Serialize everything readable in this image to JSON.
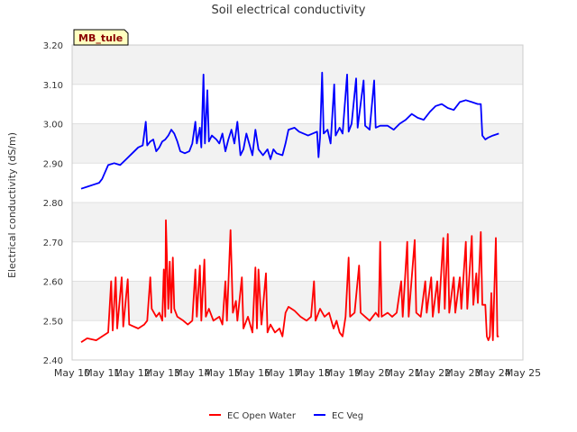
{
  "chart_data": {
    "type": "line",
    "title": "Soil electrical conductivity",
    "xlabel": "",
    "ylabel": "Electrical conductivity (dS/m)",
    "site_label": "MB_tule",
    "ylim": [
      2.4,
      3.2
    ],
    "xlim": [
      0,
      15
    ],
    "yticks": [
      2.4,
      2.5,
      2.6,
      2.7,
      2.8,
      2.9,
      3.0,
      3.1,
      3.2
    ],
    "ytick_labels": [
      "2.40",
      "2.50",
      "2.60",
      "2.70",
      "2.80",
      "2.90",
      "3.00",
      "3.10",
      "3.20"
    ],
    "xticks": [
      0,
      1,
      2,
      3,
      4,
      5,
      6,
      7,
      8,
      9,
      10,
      11,
      12,
      13,
      14,
      15
    ],
    "xtick_labels": [
      "May 10",
      "May 11",
      "May 12",
      "May 13",
      "May 14",
      "May 15",
      "May 16",
      "May 17",
      "May 18",
      "May 19",
      "May 20",
      "May 21",
      "May 22",
      "May 23",
      "May 24",
      "May 25"
    ],
    "x_units": "days since May 10",
    "grid": "horizontal",
    "legend_position": "bottom-center",
    "series": [
      {
        "name": "EC Open Water",
        "color": "#ff0000",
        "points": [
          [
            0.3,
            2.445
          ],
          [
            0.5,
            2.455
          ],
          [
            0.8,
            2.45
          ],
          [
            1.0,
            2.46
          ],
          [
            1.2,
            2.47
          ],
          [
            1.3,
            2.6
          ],
          [
            1.35,
            2.475
          ],
          [
            1.45,
            2.61
          ],
          [
            1.5,
            2.48
          ],
          [
            1.65,
            2.61
          ],
          [
            1.7,
            2.485
          ],
          [
            1.85,
            2.605
          ],
          [
            1.9,
            2.49
          ],
          [
            2.2,
            2.48
          ],
          [
            2.4,
            2.49
          ],
          [
            2.5,
            2.5
          ],
          [
            2.6,
            2.61
          ],
          [
            2.65,
            2.53
          ],
          [
            2.8,
            2.51
          ],
          [
            2.9,
            2.52
          ],
          [
            3.0,
            2.5
          ],
          [
            3.05,
            2.63
          ],
          [
            3.1,
            2.51
          ],
          [
            3.12,
            2.755
          ],
          [
            3.2,
            2.53
          ],
          [
            3.25,
            2.65
          ],
          [
            3.3,
            2.52
          ],
          [
            3.35,
            2.66
          ],
          [
            3.4,
            2.53
          ],
          [
            3.5,
            2.51
          ],
          [
            3.7,
            2.5
          ],
          [
            3.85,
            2.49
          ],
          [
            4.0,
            2.5
          ],
          [
            4.1,
            2.63
          ],
          [
            4.15,
            2.51
          ],
          [
            4.25,
            2.64
          ],
          [
            4.3,
            2.5
          ],
          [
            4.4,
            2.655
          ],
          [
            4.45,
            2.51
          ],
          [
            4.55,
            2.53
          ],
          [
            4.7,
            2.5
          ],
          [
            4.9,
            2.51
          ],
          [
            5.0,
            2.49
          ],
          [
            5.1,
            2.6
          ],
          [
            5.15,
            2.5
          ],
          [
            5.27,
            2.73
          ],
          [
            5.35,
            2.52
          ],
          [
            5.45,
            2.55
          ],
          [
            5.5,
            2.5
          ],
          [
            5.65,
            2.61
          ],
          [
            5.7,
            2.48
          ],
          [
            5.85,
            2.51
          ],
          [
            6.0,
            2.47
          ],
          [
            6.1,
            2.635
          ],
          [
            6.15,
            2.48
          ],
          [
            6.2,
            2.63
          ],
          [
            6.3,
            2.49
          ],
          [
            6.45,
            2.62
          ],
          [
            6.5,
            2.47
          ],
          [
            6.6,
            2.49
          ],
          [
            6.75,
            2.47
          ],
          [
            6.9,
            2.48
          ],
          [
            7.0,
            2.46
          ],
          [
            7.1,
            2.52
          ],
          [
            7.2,
            2.535
          ],
          [
            7.4,
            2.525
          ],
          [
            7.6,
            2.51
          ],
          [
            7.8,
            2.5
          ],
          [
            7.95,
            2.51
          ],
          [
            8.05,
            2.6
          ],
          [
            8.1,
            2.5
          ],
          [
            8.25,
            2.53
          ],
          [
            8.4,
            2.51
          ],
          [
            8.55,
            2.52
          ],
          [
            8.7,
            2.48
          ],
          [
            8.8,
            2.5
          ],
          [
            8.9,
            2.47
          ],
          [
            9.0,
            2.46
          ],
          [
            9.1,
            2.51
          ],
          [
            9.2,
            2.66
          ],
          [
            9.25,
            2.51
          ],
          [
            9.4,
            2.52
          ],
          [
            9.55,
            2.64
          ],
          [
            9.6,
            2.52
          ],
          [
            9.75,
            2.51
          ],
          [
            9.9,
            2.5
          ],
          [
            10.0,
            2.51
          ],
          [
            10.1,
            2.52
          ],
          [
            10.2,
            2.51
          ],
          [
            10.25,
            2.7
          ],
          [
            10.3,
            2.51
          ],
          [
            10.5,
            2.52
          ],
          [
            10.65,
            2.51
          ],
          [
            10.8,
            2.52
          ],
          [
            10.95,
            2.6
          ],
          [
            11.0,
            2.51
          ],
          [
            11.15,
            2.7
          ],
          [
            11.2,
            2.51
          ],
          [
            11.4,
            2.705
          ],
          [
            11.45,
            2.52
          ],
          [
            11.6,
            2.51
          ],
          [
            11.75,
            2.6
          ],
          [
            11.8,
            2.52
          ],
          [
            11.95,
            2.61
          ],
          [
            12.0,
            2.51
          ],
          [
            12.15,
            2.6
          ],
          [
            12.2,
            2.52
          ],
          [
            12.35,
            2.71
          ],
          [
            12.4,
            2.53
          ],
          [
            12.5,
            2.72
          ],
          [
            12.55,
            2.52
          ],
          [
            12.7,
            2.61
          ],
          [
            12.75,
            2.52
          ],
          [
            12.9,
            2.61
          ],
          [
            12.95,
            2.53
          ],
          [
            13.1,
            2.7
          ],
          [
            13.15,
            2.53
          ],
          [
            13.3,
            2.715
          ],
          [
            13.35,
            2.54
          ],
          [
            13.45,
            2.62
          ],
          [
            13.5,
            2.545
          ],
          [
            13.6,
            2.725
          ],
          [
            13.65,
            2.54
          ],
          [
            13.75,
            2.54
          ],
          [
            13.8,
            2.46
          ],
          [
            13.85,
            2.45
          ],
          [
            13.9,
            2.46
          ],
          [
            13.95,
            2.57
          ],
          [
            14.0,
            2.45
          ],
          [
            14.1,
            2.71
          ],
          [
            14.15,
            2.46
          ],
          [
            14.2,
            2.46
          ]
        ]
      },
      {
        "name": "EC Veg",
        "color": "#0000ff",
        "points": [
          [
            0.3,
            2.835
          ],
          [
            0.5,
            2.84
          ],
          [
            0.7,
            2.845
          ],
          [
            0.9,
            2.85
          ],
          [
            1.0,
            2.86
          ],
          [
            1.2,
            2.895
          ],
          [
            1.4,
            2.9
          ],
          [
            1.6,
            2.895
          ],
          [
            1.8,
            2.91
          ],
          [
            2.0,
            2.925
          ],
          [
            2.2,
            2.94
          ],
          [
            2.35,
            2.945
          ],
          [
            2.45,
            3.005
          ],
          [
            2.5,
            2.945
          ],
          [
            2.6,
            2.955
          ],
          [
            2.7,
            2.96
          ],
          [
            2.8,
            2.93
          ],
          [
            2.9,
            2.94
          ],
          [
            3.0,
            2.955
          ],
          [
            3.1,
            2.96
          ],
          [
            3.2,
            2.97
          ],
          [
            3.3,
            2.985
          ],
          [
            3.4,
            2.975
          ],
          [
            3.5,
            2.955
          ],
          [
            3.6,
            2.93
          ],
          [
            3.75,
            2.925
          ],
          [
            3.9,
            2.93
          ],
          [
            4.0,
            2.95
          ],
          [
            4.1,
            3.005
          ],
          [
            4.15,
            2.95
          ],
          [
            4.25,
            2.99
          ],
          [
            4.3,
            2.94
          ],
          [
            4.37,
            3.125
          ],
          [
            4.42,
            2.95
          ],
          [
            4.5,
            3.085
          ],
          [
            4.55,
            2.955
          ],
          [
            4.65,
            2.97
          ],
          [
            4.8,
            2.96
          ],
          [
            4.9,
            2.95
          ],
          [
            5.0,
            2.975
          ],
          [
            5.1,
            2.93
          ],
          [
            5.2,
            2.96
          ],
          [
            5.3,
            2.985
          ],
          [
            5.4,
            2.95
          ],
          [
            5.5,
            3.005
          ],
          [
            5.6,
            2.92
          ],
          [
            5.7,
            2.935
          ],
          [
            5.8,
            2.975
          ],
          [
            6.0,
            2.92
          ],
          [
            6.1,
            2.985
          ],
          [
            6.2,
            2.935
          ],
          [
            6.35,
            2.92
          ],
          [
            6.5,
            2.935
          ],
          [
            6.6,
            2.91
          ],
          [
            6.7,
            2.935
          ],
          [
            6.8,
            2.925
          ],
          [
            7.0,
            2.92
          ],
          [
            7.1,
            2.95
          ],
          [
            7.2,
            2.985
          ],
          [
            7.4,
            2.99
          ],
          [
            7.55,
            2.98
          ],
          [
            7.7,
            2.975
          ],
          [
            7.85,
            2.97
          ],
          [
            8.0,
            2.975
          ],
          [
            8.15,
            2.98
          ],
          [
            8.2,
            2.915
          ],
          [
            8.25,
            2.965
          ],
          [
            8.32,
            3.13
          ],
          [
            8.37,
            2.975
          ],
          [
            8.5,
            2.985
          ],
          [
            8.6,
            2.95
          ],
          [
            8.72,
            3.1
          ],
          [
            8.77,
            2.97
          ],
          [
            8.9,
            2.99
          ],
          [
            9.0,
            2.975
          ],
          [
            9.15,
            3.125
          ],
          [
            9.2,
            2.98
          ],
          [
            9.3,
            3.0
          ],
          [
            9.45,
            3.115
          ],
          [
            9.5,
            2.99
          ],
          [
            9.7,
            3.11
          ],
          [
            9.75,
            2.995
          ],
          [
            9.9,
            2.985
          ],
          [
            10.05,
            3.11
          ],
          [
            10.1,
            2.99
          ],
          [
            10.25,
            2.995
          ],
          [
            10.5,
            2.995
          ],
          [
            10.7,
            2.985
          ],
          [
            10.9,
            3.0
          ],
          [
            11.1,
            3.01
          ],
          [
            11.3,
            3.025
          ],
          [
            11.5,
            3.015
          ],
          [
            11.7,
            3.01
          ],
          [
            11.9,
            3.03
          ],
          [
            12.1,
            3.045
          ],
          [
            12.3,
            3.05
          ],
          [
            12.5,
            3.04
          ],
          [
            12.7,
            3.035
          ],
          [
            12.9,
            3.055
          ],
          [
            13.1,
            3.06
          ],
          [
            13.3,
            3.055
          ],
          [
            13.5,
            3.05
          ],
          [
            13.6,
            3.05
          ],
          [
            13.65,
            2.97
          ],
          [
            13.75,
            2.96
          ],
          [
            13.85,
            2.965
          ],
          [
            14.0,
            2.97
          ],
          [
            14.2,
            2.975
          ]
        ]
      }
    ]
  }
}
